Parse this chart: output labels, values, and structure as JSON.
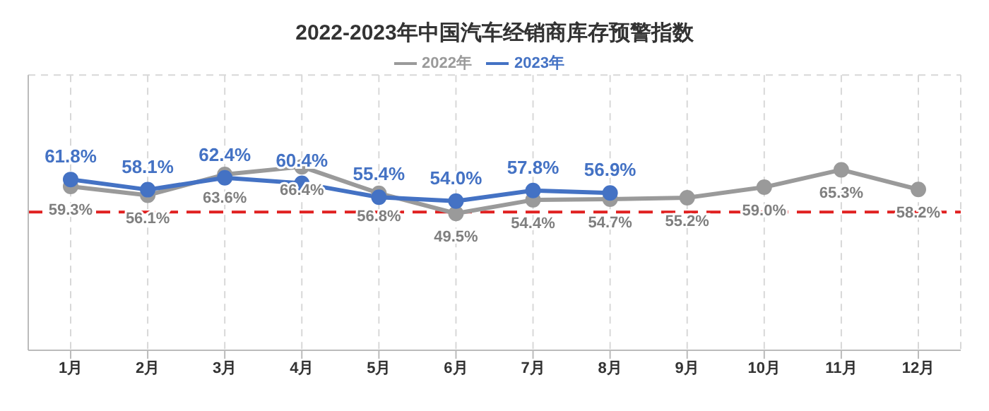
{
  "chart_data": {
    "type": "line",
    "title": "2022-2023年中国汽车经销商库存预警指数",
    "categories": [
      "1月",
      "2月",
      "3月",
      "4月",
      "5月",
      "6月",
      "7月",
      "8月",
      "9月",
      "10月",
      "11月",
      "12月"
    ],
    "series": [
      {
        "name": "2022年",
        "color": "#9a9a9a",
        "values": [
          59.3,
          56.1,
          63.6,
          66.4,
          56.8,
          49.5,
          54.4,
          54.7,
          55.2,
          59.0,
          65.3,
          58.2
        ],
        "value_labels": [
          "59.3%",
          "56.1%",
          "63.6%",
          "66.4%",
          "56.8%",
          "49.5%",
          "54.4%",
          "54.7%",
          "55.2%",
          "59.0%",
          "65.3%",
          "58.2%"
        ]
      },
      {
        "name": "2023年",
        "color": "#4472c4",
        "values": [
          61.8,
          58.1,
          62.4,
          60.4,
          55.4,
          54.0,
          57.8,
          56.9,
          null,
          null,
          null,
          null
        ],
        "value_labels": [
          "61.8%",
          "58.1%",
          "62.4%",
          "60.4%",
          "55.4%",
          "54.0%",
          "57.8%",
          "56.9%",
          null,
          null,
          null,
          null
        ]
      }
    ],
    "tick_labels": "x",
    "grid": true,
    "legend": "top",
    "marker": "circle",
    "line_style": "solid",
    "ref_lines": [
      {
        "axis": "y",
        "value": 50,
        "color": "#e02020",
        "line_style": "dashed"
      }
    ]
  }
}
